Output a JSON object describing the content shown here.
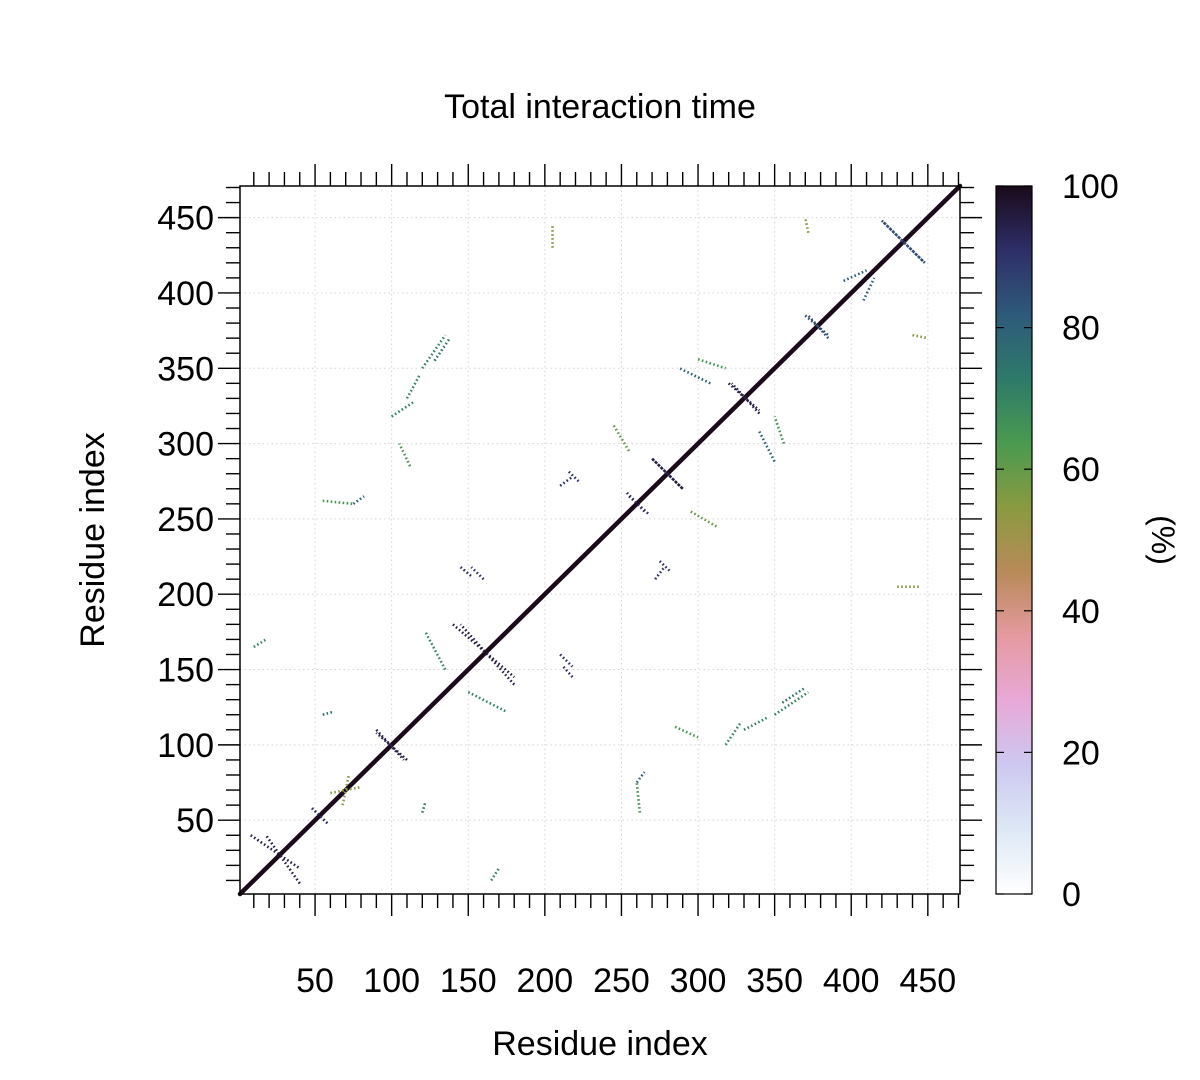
{
  "chart_data": {
    "type": "heatmap",
    "title": "Total interaction time",
    "xlabel": "Residue index",
    "ylabel": "Residue index",
    "colorbar_label": "(%)",
    "xlim": [
      1,
      471
    ],
    "ylim": [
      1,
      471
    ],
    "x_ticks": [
      50,
      100,
      150,
      200,
      250,
      300,
      350,
      400,
      450
    ],
    "y_ticks": [
      50,
      100,
      150,
      200,
      250,
      300,
      350,
      400,
      450
    ],
    "x_tick_labels": [
      "50",
      "100",
      "150",
      "200",
      "250",
      "300",
      "350",
      "400",
      "450"
    ],
    "y_tick_labels": [
      "50",
      "100",
      "150",
      "200",
      "250",
      "300",
      "350",
      "400",
      "450"
    ],
    "colorbar_ticks": [
      0,
      20,
      40,
      60,
      80,
      100
    ],
    "colorbar_tick_labels": [
      "0",
      "20",
      "40",
      "60",
      "80",
      "100"
    ],
    "colorbar_range": [
      0,
      100
    ],
    "colormap": [
      "#ffffff",
      "#dde8f5",
      "#cdc8f0",
      "#e8a8d8",
      "#e59aa0",
      "#b88a58",
      "#8a9a40",
      "#4a9a50",
      "#2e7a6a",
      "#2e5a7a",
      "#2e2e68",
      "#1a0a1a"
    ],
    "grid": true,
    "diagonal": {
      "from": 1,
      "to": 471,
      "value": 100
    },
    "contact_features": [
      {
        "x1": 8,
        "y1": 40,
        "x2": 40,
        "y2": 18,
        "value": 95
      },
      {
        "x1": 48,
        "y1": 58,
        "x2": 58,
        "y2": 48,
        "value": 90
      },
      {
        "x1": 60,
        "y1": 68,
        "x2": 80,
        "y2": 72,
        "value": 55
      },
      {
        "x1": 90,
        "y1": 110,
        "x2": 108,
        "y2": 90,
        "value": 95
      },
      {
        "x1": 140,
        "y1": 180,
        "x2": 180,
        "y2": 145,
        "value": 95
      },
      {
        "x1": 145,
        "y1": 218,
        "x2": 152,
        "y2": 212,
        "value": 92
      },
      {
        "x1": 210,
        "y1": 160,
        "x2": 218,
        "y2": 152,
        "value": 90
      },
      {
        "x1": 150,
        "y1": 135,
        "x2": 175,
        "y2": 122,
        "value": 70
      },
      {
        "x1": 255,
        "y1": 265,
        "x2": 268,
        "y2": 253,
        "value": 92
      },
      {
        "x1": 270,
        "y1": 290,
        "x2": 290,
        "y2": 270,
        "value": 95
      },
      {
        "x1": 275,
        "y1": 222,
        "x2": 282,
        "y2": 215,
        "value": 90
      },
      {
        "x1": 320,
        "y1": 340,
        "x2": 340,
        "y2": 322,
        "value": 95
      },
      {
        "x1": 340,
        "y1": 308,
        "x2": 350,
        "y2": 288,
        "value": 80
      },
      {
        "x1": 370,
        "y1": 385,
        "x2": 385,
        "y2": 372,
        "value": 85
      },
      {
        "x1": 420,
        "y1": 448,
        "x2": 448,
        "y2": 420,
        "value": 85
      },
      {
        "x1": 120,
        "y1": 350,
        "x2": 135,
        "y2": 372,
        "value": 70
      },
      {
        "x1": 100,
        "y1": 318,
        "x2": 115,
        "y2": 328,
        "value": 70
      },
      {
        "x1": 210,
        "y1": 272,
        "x2": 218,
        "y2": 278,
        "value": 90
      },
      {
        "x1": 285,
        "y1": 112,
        "x2": 300,
        "y2": 105,
        "value": 65
      },
      {
        "x1": 330,
        "y1": 110,
        "x2": 345,
        "y2": 118,
        "value": 70
      },
      {
        "x1": 355,
        "y1": 128,
        "x2": 370,
        "y2": 138,
        "value": 75
      },
      {
        "x1": 395,
        "y1": 408,
        "x2": 410,
        "y2": 415,
        "value": 80
      },
      {
        "x1": 260,
        "y1": 75,
        "x2": 265,
        "y2": 82,
        "value": 80
      },
      {
        "x1": 165,
        "y1": 10,
        "x2": 170,
        "y2": 18,
        "value": 70
      },
      {
        "x1": 55,
        "y1": 120,
        "x2": 62,
        "y2": 122,
        "value": 75
      },
      {
        "x1": 55,
        "y1": 262,
        "x2": 75,
        "y2": 260,
        "value": 65
      },
      {
        "x1": 245,
        "y1": 312,
        "x2": 255,
        "y2": 295,
        "value": 60
      },
      {
        "x1": 300,
        "y1": 356,
        "x2": 318,
        "y2": 350,
        "value": 65
      },
      {
        "x1": 430,
        "y1": 205,
        "x2": 445,
        "y2": 205,
        "value": 55
      },
      {
        "x1": 440,
        "y1": 372,
        "x2": 450,
        "y2": 370,
        "value": 55
      }
    ]
  }
}
